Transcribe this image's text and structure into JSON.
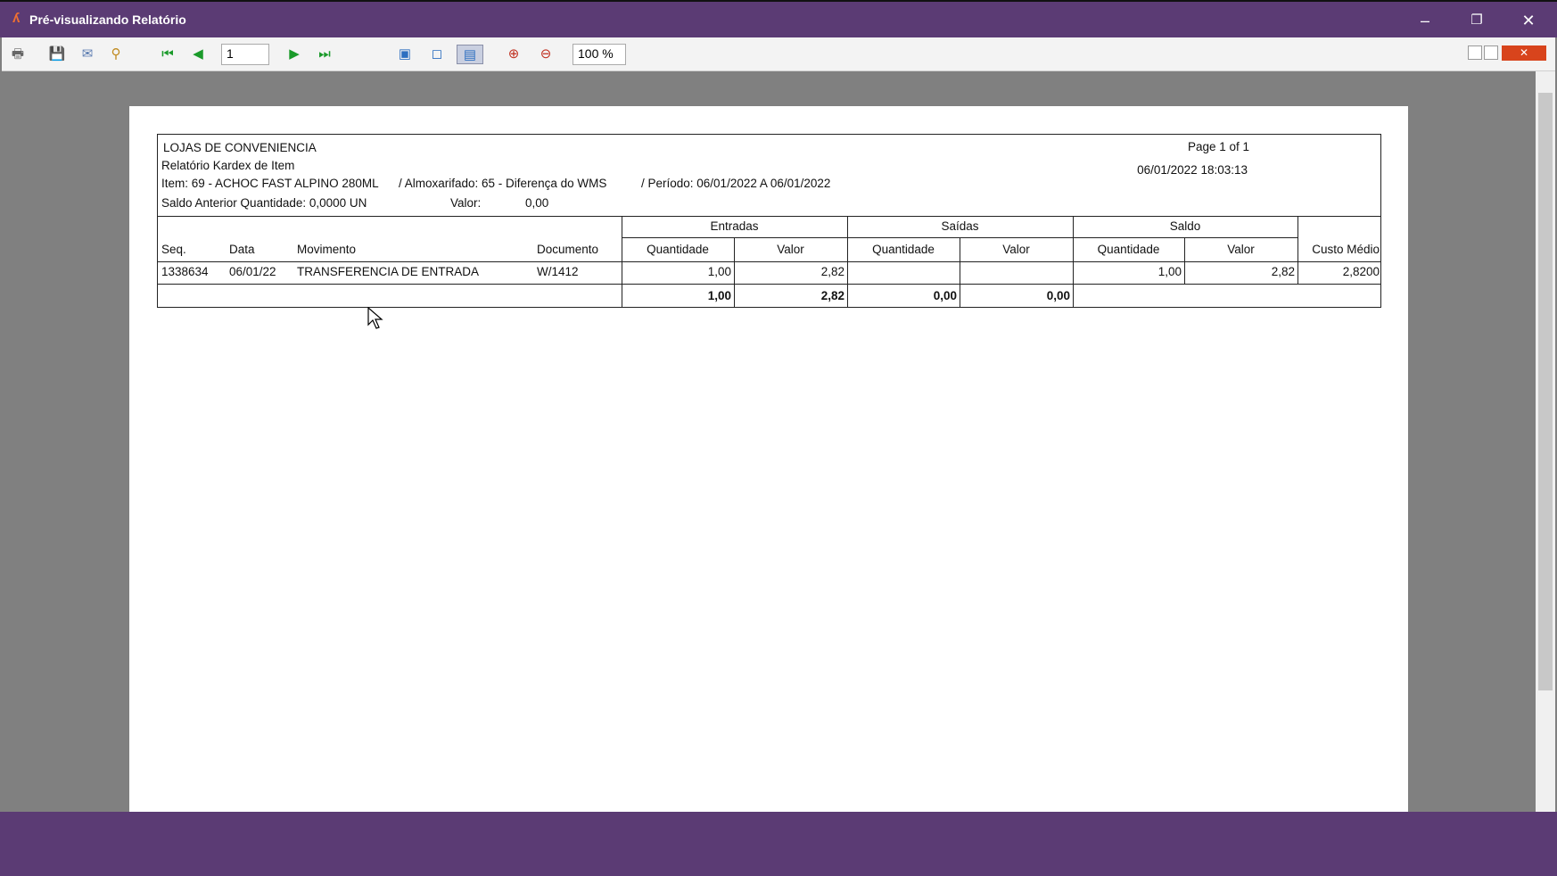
{
  "window": {
    "title": "Pré-visualizando Relatório",
    "app_icon": "app-logo-icon"
  },
  "toolbar": {
    "page_input": "1",
    "zoom_value": "100 %",
    "icons": [
      "print-icon",
      "save-icon",
      "email-icon",
      "search-icon",
      "first-page-icon",
      "prev-page-icon",
      "next-page-icon",
      "last-page-icon",
      "page-width-icon",
      "whole-page-icon",
      "full-screen-icon",
      "zoom-in-icon",
      "zoom-out-icon"
    ]
  },
  "report": {
    "company": "LOJAS DE CONVENIENCIA",
    "title": "Relatório Kardex de Item",
    "item_line": "Item:  69 - ACHOC FAST ALPINO 280ML",
    "almox": "/   Almoxarifado: 65 - Diferença do WMS",
    "periodo": "/  Período: 06/01/2022 A 06/01/2022",
    "saldo_anterior": "Saldo Anterior  Quantidade:  0,0000 UN",
    "valor_label": "Valor:",
    "valor_value": "0,00",
    "page_info": "Page 1 of 1",
    "datetime": "06/01/2022 18:03:13",
    "groups": {
      "entradas": "Entradas",
      "saidas": "Saídas",
      "saldo": "Saldo"
    },
    "headers": {
      "seq": "Seq.",
      "data": "Data",
      "movimento": "Movimento",
      "documento": "Documento",
      "e_qtd": "Quantidade",
      "e_valor": "Valor",
      "s_qtd": "Quantidade",
      "s_valor": "Valor",
      "sd_qtd": "Quantidade",
      "sd_valor": "Valor",
      "custo": "Custo Médio"
    },
    "rows": [
      {
        "seq": "1338634",
        "data": "06/01/22",
        "movimento": "TRANSFERENCIA DE ENTRADA",
        "documento": "W/1412",
        "e_qtd": "1,00",
        "e_valor": "2,82",
        "s_qtd": "",
        "s_valor": "",
        "sd_qtd": "1,00",
        "sd_valor": "2,82",
        "custo": "2,8200"
      }
    ],
    "totals": {
      "e_qtd": "1,00",
      "e_valor": "2,82",
      "s_qtd": "0,00",
      "s_valor": "0,00"
    }
  },
  "colors": {
    "titlebar": "#5b3b74",
    "viewer_bg": "#808080"
  }
}
